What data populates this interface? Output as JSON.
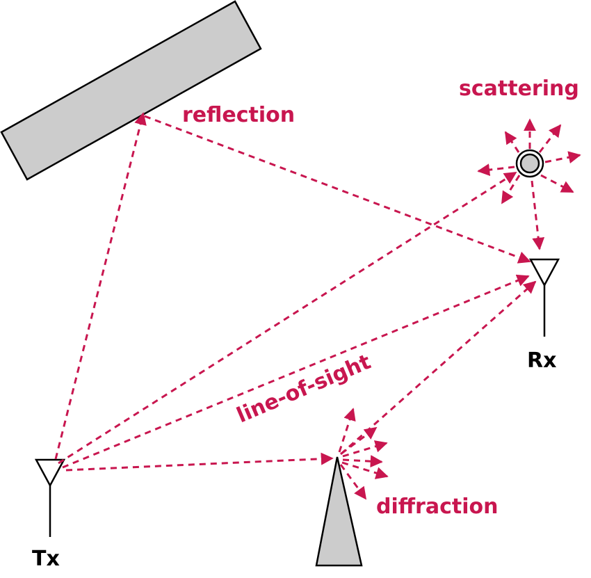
{
  "labels": {
    "reflection": "reflection",
    "scattering": "scattering",
    "line_of_sight": "line-of-sight",
    "diffraction": "diffraction",
    "tx": "Tx",
    "rx": "Rx"
  },
  "colors": {
    "ray": "#c8164f",
    "obstacle_fill": "#cccccc",
    "outline": "#000000"
  }
}
